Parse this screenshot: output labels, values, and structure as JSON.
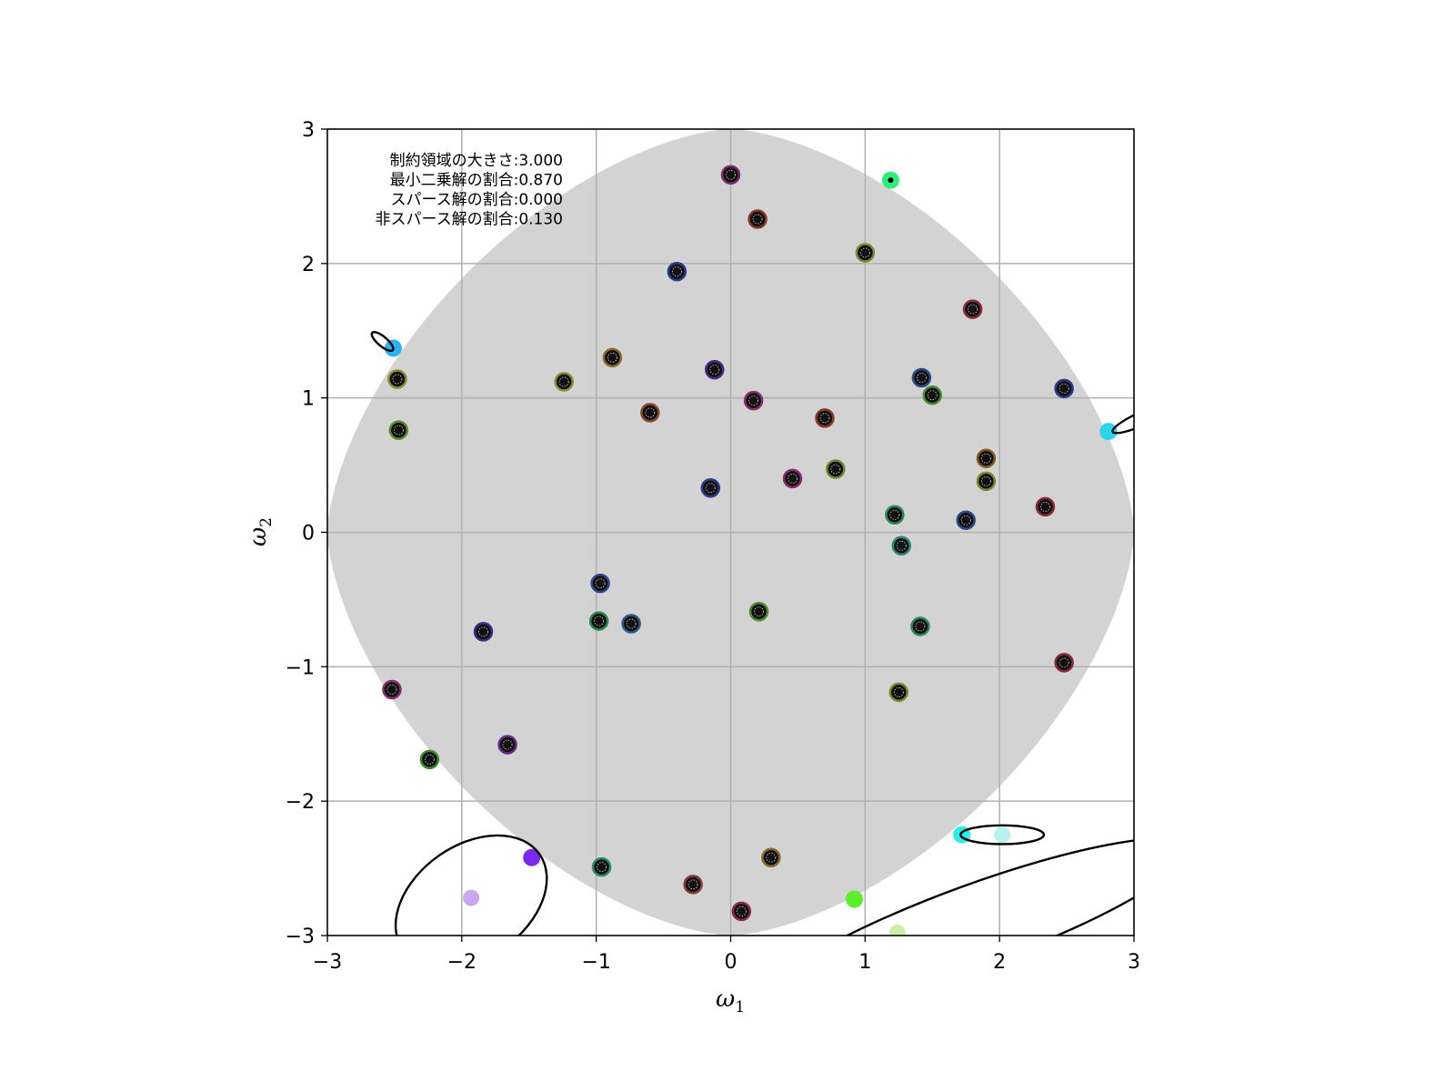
{
  "chart_data": {
    "type": "scatter",
    "title": "",
    "xlabel": "ω",
    "xlabel_sub": "1",
    "ylabel": "ω",
    "ylabel_sub": "2",
    "xlim": [
      -3,
      3
    ],
    "ylim": [
      -3,
      3
    ],
    "xticks": [
      -3,
      -2,
      -1,
      0,
      1,
      2,
      3
    ],
    "yticks": [
      -3,
      -2,
      -1,
      0,
      1,
      2,
      3
    ],
    "xtick_labels": [
      "−3",
      "−2",
      "−1",
      "0",
      "1",
      "2",
      "3"
    ],
    "ytick_labels": [
      "−3",
      "−2",
      "−1",
      "0",
      "1",
      "2",
      "3"
    ],
    "grid": true,
    "region": {
      "shape": "superellipse",
      "radius": 3.0,
      "exponent": 1.6,
      "color": "#d3d3d3"
    },
    "annotations": [
      "制約領域の大きさ:3.000",
      "最小二乗解の割合:0.870",
      "スパース解の割合:0.000",
      "非スパース解の割合:0.130"
    ],
    "inside_points": [
      {
        "x": 0.0,
        "y": 2.66,
        "color": "#7a2e6e"
      },
      {
        "x": 0.2,
        "y": 2.33,
        "color": "#8b3a2a"
      },
      {
        "x": -0.4,
        "y": 1.94,
        "color": "#2a3a8b"
      },
      {
        "x": 1.0,
        "y": 2.08,
        "color": "#7a8b2a"
      },
      {
        "x": 1.8,
        "y": 1.66,
        "color": "#8b2a3a"
      },
      {
        "x": -2.48,
        "y": 1.14,
        "color": "#8b8b2a"
      },
      {
        "x": -2.47,
        "y": 0.76,
        "color": "#5a8b2a"
      },
      {
        "x": -1.24,
        "y": 1.12,
        "color": "#8b8b2a"
      },
      {
        "x": -0.88,
        "y": 1.3,
        "color": "#8b6a2a"
      },
      {
        "x": -0.12,
        "y": 1.21,
        "color": "#4a2a8b"
      },
      {
        "x": 0.17,
        "y": 0.98,
        "color": "#8b2a6e"
      },
      {
        "x": -0.6,
        "y": 0.89,
        "color": "#8b4a2a"
      },
      {
        "x": 0.7,
        "y": 0.85,
        "color": "#8b3a2a"
      },
      {
        "x": 1.42,
        "y": 1.15,
        "color": "#2a4a8b"
      },
      {
        "x": 1.5,
        "y": 1.02,
        "color": "#4a8b2a"
      },
      {
        "x": 2.48,
        "y": 1.07,
        "color": "#2a3a8b"
      },
      {
        "x": 1.9,
        "y": 0.55,
        "color": "#8b5a2a"
      },
      {
        "x": 1.9,
        "y": 0.38,
        "color": "#7a8b2a"
      },
      {
        "x": 0.46,
        "y": 0.4,
        "color": "#8b2a6e"
      },
      {
        "x": 0.78,
        "y": 0.47,
        "color": "#6a8b2a"
      },
      {
        "x": -0.15,
        "y": 0.33,
        "color": "#2a3a8b"
      },
      {
        "x": 2.34,
        "y": 0.19,
        "color": "#8b2a3a"
      },
      {
        "x": 1.22,
        "y": 0.13,
        "color": "#2a8b5a"
      },
      {
        "x": 1.75,
        "y": 0.09,
        "color": "#2a4a8b"
      },
      {
        "x": 1.27,
        "y": -0.1,
        "color": "#2a8b7a"
      },
      {
        "x": -0.97,
        "y": -0.38,
        "color": "#2a4a8b"
      },
      {
        "x": -0.98,
        "y": -0.66,
        "color": "#2a8b4a"
      },
      {
        "x": -0.74,
        "y": -0.68,
        "color": "#2a5a8b"
      },
      {
        "x": 0.21,
        "y": -0.59,
        "color": "#4a8b2a"
      },
      {
        "x": 1.41,
        "y": -0.7,
        "color": "#2a8b5a"
      },
      {
        "x": -1.84,
        "y": -0.74,
        "color": "#3a2a8b"
      },
      {
        "x": 2.48,
        "y": -0.97,
        "color": "#8b2a3a"
      },
      {
        "x": -2.52,
        "y": -1.17,
        "color": "#8b2a6e"
      },
      {
        "x": 1.25,
        "y": -1.19,
        "color": "#7a8b2a"
      },
      {
        "x": -1.66,
        "y": -1.58,
        "color": "#6a2a8b"
      },
      {
        "x": -2.24,
        "y": -1.69,
        "color": "#3a8b2a"
      },
      {
        "x": -0.96,
        "y": -2.49,
        "color": "#2a8b6a"
      },
      {
        "x": 0.3,
        "y": -2.42,
        "color": "#8b6a2a"
      },
      {
        "x": -0.28,
        "y": -2.62,
        "color": "#8b3a3a"
      },
      {
        "x": 0.08,
        "y": -2.82,
        "color": "#8b2a4a"
      }
    ],
    "solution_points": [
      {
        "x": 1.19,
        "y": 2.62,
        "color": "#2aef7a",
        "center_dot": true,
        "opacity": 1
      },
      {
        "x": -2.51,
        "y": 1.37,
        "color": "#2ab4ef",
        "center_dot": false,
        "opacity": 1
      },
      {
        "x": 2.81,
        "y": 0.75,
        "color": "#2ad4ef",
        "center_dot": false,
        "opacity": 1
      },
      {
        "x": -1.48,
        "y": -2.42,
        "color": "#7a2aef",
        "center_dot": false,
        "opacity": 1
      },
      {
        "x": 1.72,
        "y": -2.25,
        "color": "#2aefe4",
        "center_dot": false,
        "opacity": 1
      },
      {
        "x": 0.92,
        "y": -2.73,
        "color": "#5aef2a",
        "center_dot": false,
        "opacity": 1
      }
    ],
    "faint_points": [
      {
        "x": -1.93,
        "y": -2.72,
        "color": "#c9a8ef"
      },
      {
        "x": 2.02,
        "y": -2.25,
        "color": "#b8f2ef"
      },
      {
        "x": 1.24,
        "y": -2.98,
        "color": "#c9efa8"
      }
    ],
    "contours": [
      {
        "cx": -2.59,
        "cy": 1.42,
        "rx": 0.1,
        "ry": 0.035,
        "angle_deg": -40
      },
      {
        "cx": 3.07,
        "cy": 0.85,
        "rx": 0.25,
        "ry": 0.05,
        "angle_deg": 24
      },
      {
        "cx": -1.93,
        "cy": -2.75,
        "rx": 0.62,
        "ry": 0.42,
        "angle_deg": 35
      },
      {
        "cx": 2.02,
        "cy": -2.25,
        "rx": 0.31,
        "ry": 0.07,
        "angle_deg": 0
      },
      {
        "cx": 1.82,
        "cy": -2.92,
        "rx": 1.68,
        "ry": 0.3,
        "angle_deg": 20
      }
    ]
  }
}
